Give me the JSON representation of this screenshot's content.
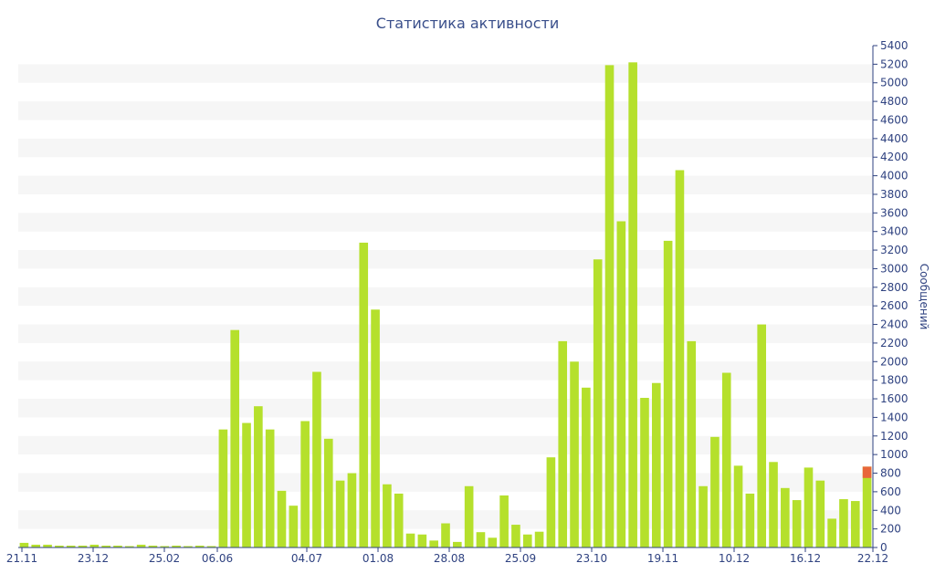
{
  "chart_data": {
    "type": "bar",
    "title": "Статистика активности",
    "ylabel": "Сообщений",
    "ylim": [
      0,
      5400
    ],
    "yticks": [
      0,
      200,
      400,
      600,
      800,
      1000,
      1200,
      1400,
      1600,
      1800,
      2000,
      2200,
      2400,
      2600,
      2800,
      3000,
      3200,
      3400,
      3600,
      3800,
      4000,
      4200,
      4400,
      4600,
      4800,
      5000,
      5200,
      5400
    ],
    "xticks": [
      "21.11",
      "23.12",
      "25.02",
      "06.06",
      "04.07",
      "01.08",
      "28.08",
      "25.09",
      "23.10",
      "19.11",
      "10.12",
      "16.12",
      "22.12"
    ],
    "grid": "horizontal bands",
    "bar_color": "#b5e02c",
    "highlight_color": "#e8663a",
    "series": [
      {
        "values": [
          50,
          30,
          30,
          20,
          20,
          20,
          30,
          20,
          20,
          15,
          30,
          20,
          15,
          20,
          15,
          20,
          15,
          1270,
          2340,
          1340,
          1520,
          1270,
          610,
          450,
          1360,
          1890,
          1170,
          720,
          800,
          3280,
          2560,
          680,
          580,
          150,
          140,
          75,
          260,
          60,
          660,
          165,
          105,
          560,
          245,
          140,
          170,
          970,
          2220,
          2000,
          1720,
          3100,
          5190,
          3510,
          5220,
          1610,
          1770,
          3300,
          4060,
          2220,
          660,
          1190,
          1880,
          880,
          580,
          2400,
          920,
          640,
          510,
          860,
          720,
          310,
          520,
          500,
          870
        ]
      }
    ]
  }
}
